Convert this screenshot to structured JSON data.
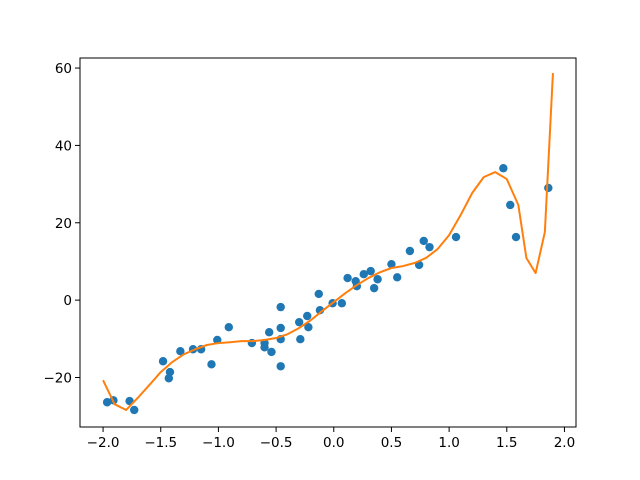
{
  "chart_data": {
    "type": "scatter",
    "xlim": [
      -2.2,
      2.1
    ],
    "ylim": [
      -32.8,
      62.6
    ],
    "xticks": [
      {
        "value": -2.0,
        "label": "−2.0"
      },
      {
        "value": -1.5,
        "label": "−1.5"
      },
      {
        "value": -1.0,
        "label": "−1.0"
      },
      {
        "value": -0.5,
        "label": "−0.5"
      },
      {
        "value": 0.0,
        "label": "0.0"
      },
      0.5,
      {
        "value": 1.0,
        "label": "1.0"
      },
      1.5,
      {
        "value": 2.0,
        "label": "2.0"
      }
    ],
    "yticks": [
      {
        "value": -20,
        "label": "−20"
      },
      0,
      20,
      40,
      60
    ],
    "series": [
      {
        "type": "scatter",
        "color": "#1f77b4",
        "x": [
          -1.965,
          -1.91,
          -1.77,
          -1.73,
          -1.48,
          -1.42,
          -1.43,
          -1.33,
          -1.22,
          -1.15,
          -1.06,
          -1.01,
          -0.91,
          -0.71,
          -0.6,
          -0.6,
          -0.56,
          -0.54,
          -0.46,
          -0.46,
          -0.46,
          -0.46,
          -0.3,
          -0.29,
          -0.23,
          -0.22,
          -0.13,
          -0.12,
          -0.01,
          0.07,
          0.12,
          0.19,
          0.2,
          0.26,
          0.32,
          0.35,
          0.38,
          0.5,
          0.55,
          0.66,
          0.74,
          0.78,
          0.83,
          1.06,
          1.47,
          1.53,
          1.58,
          1.86
        ],
        "values": [
          -26.4,
          -25.9,
          -26.1,
          -28.4,
          -15.8,
          -18.6,
          -20.2,
          -13.2,
          -12.7,
          -12.7,
          -16.6,
          -10.3,
          -7.0,
          -11.1,
          -11.1,
          -12.2,
          -8.3,
          -13.4,
          -7.2,
          -10.1,
          -1.8,
          -17.1,
          -5.7,
          -10.1,
          -4.1,
          -7.0,
          1.6,
          -2.6,
          -0.8,
          -0.8,
          5.7,
          4.9,
          3.6,
          6.7,
          7.5,
          3.1,
          5.4,
          9.3,
          5.9,
          12.7,
          9.1,
          15.3,
          13.7,
          16.3,
          34.1,
          24.6,
          16.3,
          29.0
        ]
      },
      {
        "type": "line",
        "color": "#ff7f0e",
        "x": [
          -2.0,
          -1.9,
          -1.8,
          -1.7,
          -1.6,
          -1.5,
          -1.4,
          -1.3,
          -1.2,
          -1.1,
          -1.0,
          -0.9,
          -0.8,
          -0.7,
          -0.6,
          -0.5,
          -0.4,
          -0.3,
          -0.2,
          -0.1,
          0.0,
          0.1,
          0.2,
          0.3,
          0.4,
          0.5,
          0.6,
          0.7,
          0.8,
          0.9,
          1.0,
          1.1,
          1.2,
          1.3,
          1.4,
          1.5,
          1.6,
          1.67,
          1.75,
          1.83,
          1.9
        ],
        "values": [
          -20.7,
          -26.9,
          -28.4,
          -25.3,
          -22.0,
          -18.6,
          -16.0,
          -14.0,
          -12.7,
          -11.6,
          -11.1,
          -10.9,
          -10.6,
          -10.6,
          -10.3,
          -9.8,
          -8.8,
          -7.2,
          -5.2,
          -2.8,
          -0.5,
          1.8,
          3.9,
          5.7,
          7.2,
          8.3,
          8.8,
          9.6,
          10.9,
          13.2,
          16.8,
          22.0,
          27.7,
          31.8,
          33.1,
          31.3,
          24.6,
          10.9,
          7.0,
          17.6,
          58.7
        ]
      }
    ]
  }
}
